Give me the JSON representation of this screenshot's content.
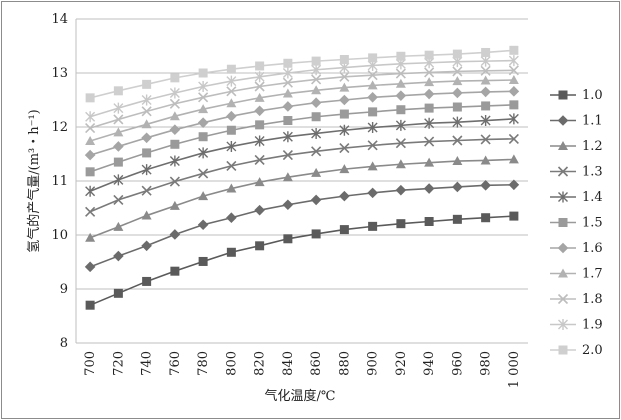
{
  "chart_data": {
    "type": "line",
    "title": "",
    "xlabel": "气化温度/℃",
    "ylabel": "氢气的产气量/(m³・h⁻¹)",
    "x": [
      700,
      720,
      740,
      760,
      780,
      800,
      820,
      840,
      860,
      880,
      900,
      920,
      940,
      960,
      980,
      1000
    ],
    "x_tick_labels": [
      "700",
      "720",
      "740",
      "760",
      "780",
      "800",
      "820",
      "840",
      "860",
      "880",
      "900",
      "920",
      "940",
      "960",
      "980",
      "1 000"
    ],
    "ylim": [
      8,
      14
    ],
    "y_ticks": [
      8,
      9,
      10,
      11,
      12,
      13,
      14
    ],
    "grid": "horizontal",
    "legend_position": "right",
    "series": [
      {
        "name": "1.0",
        "marker": "square",
        "color": "#5a5a5a",
        "values": [
          8.7,
          8.92,
          9.14,
          9.33,
          9.51,
          9.68,
          9.8,
          9.93,
          10.02,
          10.1,
          10.16,
          10.21,
          10.25,
          10.29,
          10.32,
          10.35
        ]
      },
      {
        "name": "1.1",
        "marker": "diamond",
        "color": "#6b6b6b",
        "values": [
          9.41,
          9.61,
          9.8,
          10.01,
          10.19,
          10.32,
          10.46,
          10.56,
          10.65,
          10.72,
          10.78,
          10.83,
          10.86,
          10.89,
          10.92,
          10.93
        ]
      },
      {
        "name": "1.2",
        "marker": "triangle",
        "color": "#8a8a8a",
        "values": [
          9.95,
          10.15,
          10.36,
          10.54,
          10.72,
          10.86,
          10.98,
          11.07,
          11.15,
          11.22,
          11.27,
          11.31,
          11.34,
          11.37,
          11.38,
          11.4
        ]
      },
      {
        "name": "1.3",
        "marker": "x",
        "color": "#7a7a7a",
        "values": [
          10.43,
          10.65,
          10.82,
          10.99,
          11.14,
          11.28,
          11.39,
          11.48,
          11.55,
          11.61,
          11.66,
          11.7,
          11.73,
          11.75,
          11.77,
          11.78
        ]
      },
      {
        "name": "1.4",
        "marker": "star",
        "color": "#6e6e6e",
        "values": [
          10.81,
          11.02,
          11.21,
          11.37,
          11.52,
          11.64,
          11.74,
          11.82,
          11.88,
          11.94,
          11.99,
          12.03,
          12.07,
          12.09,
          12.12,
          12.15
        ]
      },
      {
        "name": "1.5",
        "marker": "square",
        "color": "#9a9a9a",
        "values": [
          11.17,
          11.35,
          11.52,
          11.68,
          11.82,
          11.94,
          12.04,
          12.12,
          12.19,
          12.24,
          12.28,
          12.32,
          12.35,
          12.37,
          12.39,
          12.41
        ]
      },
      {
        "name": "1.6",
        "marker": "diamond",
        "color": "#a5a5a5",
        "values": [
          11.48,
          11.64,
          11.8,
          11.95,
          12.08,
          12.2,
          12.3,
          12.38,
          12.45,
          12.5,
          12.55,
          12.58,
          12.61,
          12.63,
          12.65,
          12.66
        ]
      },
      {
        "name": "1.7",
        "marker": "triangle",
        "color": "#b2b2b2",
        "values": [
          11.74,
          11.9,
          12.05,
          12.2,
          12.33,
          12.44,
          12.54,
          12.62,
          12.68,
          12.73,
          12.77,
          12.8,
          12.83,
          12.85,
          12.86,
          12.87
        ]
      },
      {
        "name": "1.8",
        "marker": "x",
        "color": "#bdbdbd",
        "values": [
          11.98,
          12.14,
          12.29,
          12.43,
          12.55,
          12.66,
          12.75,
          12.82,
          12.88,
          12.93,
          12.96,
          12.99,
          13.01,
          13.03,
          13.04,
          13.05
        ]
      },
      {
        "name": "1.9",
        "marker": "star",
        "color": "#c8c8c8",
        "values": [
          12.19,
          12.35,
          12.5,
          12.63,
          12.75,
          12.85,
          12.93,
          13.0,
          13.06,
          13.1,
          13.14,
          13.17,
          13.19,
          13.21,
          13.22,
          13.23
        ]
      },
      {
        "name": "2.0",
        "marker": "square",
        "color": "#cfcfcf",
        "values": [
          12.54,
          12.67,
          12.79,
          12.91,
          13.0,
          13.07,
          13.13,
          13.18,
          13.22,
          13.25,
          13.28,
          13.31,
          13.33,
          13.35,
          13.38,
          13.42
        ]
      }
    ]
  }
}
